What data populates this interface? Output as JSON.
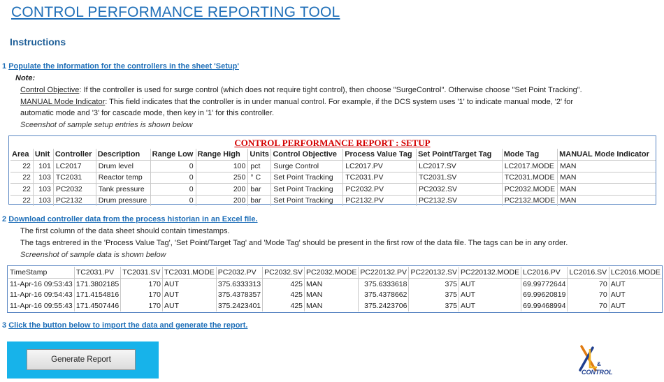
{
  "title": "CONTROL PERFORMANCE REPORTING TOOL",
  "instructions_heading": "Instructions",
  "step1": {
    "num": "1",
    "text": "Populate  the information for the controllers in the sheet 'Setup'",
    "note_label": "Note:",
    "objective_label": "Control Objective",
    "objective_text": ": If the controller is used for surge control (which does not require tight control), then choose \"SurgeControl\". Otherwise choose \"Set Point Tracking\".",
    "manual_label": "MANUAL Mode Indicator",
    "manual_text_1": ": This field indicates that the controller is in under manual control. For example, if the DCS system uses '1' to indicate manual mode, '2' for",
    "manual_text_2": "automatic mode and '3' for cascade mode, then key in '1' for this controller.",
    "screenshot_note": "Sceenshot of sample setup entries is shown below"
  },
  "setup": {
    "title": "CONTROL PERFORMANCE REPORT : SETUP",
    "headers": [
      "Area",
      "Unit",
      "Controller",
      "Description",
      "Range Low",
      "Range High",
      "Units",
      "Control Objective",
      "Process Value Tag",
      "Set Point/Target Tag",
      "Mode Tag",
      "MANUAL Mode Indicator"
    ],
    "rows": [
      [
        "22",
        "101",
        "LC2017",
        "Drum level",
        "0",
        "100",
        "pct",
        "Surge Control",
        "LC2017.PV",
        "LC2017.SV",
        "LC2017.MODE",
        "MAN"
      ],
      [
        "22",
        "103",
        "TC2031",
        "Reactor temp",
        "0",
        "250",
        "° C",
        "Set Point Tracking",
        "TC2031.PV",
        "TC2031.SV",
        "TC2031.MODE",
        "MAN"
      ],
      [
        "22",
        "103",
        "PC2032",
        "Tank pressure",
        "0",
        "200",
        "bar",
        "Set Point Tracking",
        "PC2032.PV",
        "PC2032.SV",
        "PC2032.MODE",
        "MAN"
      ],
      [
        "22",
        "103",
        "PC2132",
        "Drum pressure",
        "0",
        "200",
        "bar",
        "Set Point Tracking",
        "PC2132.PV",
        "PC2132.SV",
        "PC2132.MODE",
        "MAN"
      ]
    ]
  },
  "step2": {
    "num": "2",
    "text": "Download controller data from the process historian in an Excel file.",
    "line1": "The first column of the data sheet should contain timestamps.",
    "line2": "The tags entrered in the 'Process Value Tag',  'Set Point/Target Tag' and 'Mode Tag' should be present in the first row of the data file. The tags can be in any order.",
    "screenshot_note": "Screenshot of sample data is shown below"
  },
  "data": {
    "headers": [
      "TimeStamp",
      "TC2031.PV",
      "TC2031.SV",
      "TC2031.MODE",
      "PC2032.PV",
      "PC2032.SV",
      "PC2032.MODE",
      "PC220132.PV",
      "PC220132.SV",
      "PC220132.MODE",
      "LC2016.PV",
      "LC2016.SV",
      "LC2016.MODE"
    ],
    "rows": [
      [
        "11-Apr-16 09:53:43",
        "171.3802185",
        "170",
        "AUT",
        "375.6333313",
        "425",
        "MAN",
        "375.6333618",
        "375",
        "AUT",
        "69.99772644",
        "70",
        "AUT"
      ],
      [
        "11-Apr-16 09:54:43",
        "171.4154816",
        "170",
        "AUT",
        "375.4378357",
        "425",
        "MAN",
        "375.4378662",
        "375",
        "AUT",
        "69.99620819",
        "70",
        "AUT"
      ],
      [
        "11-Apr-16 09:55:43",
        "171.4507446",
        "170",
        "AUT",
        "375.2423401",
        "425",
        "MAN",
        "375.2423706",
        "375",
        "AUT",
        "69.99468994",
        "70",
        "AUT"
      ]
    ]
  },
  "step3": {
    "num": "3",
    "text": "Click the button below to import the data and generate the report."
  },
  "button_label": "Generate Report",
  "logo": {
    "text": "CONTROL"
  },
  "colors": {
    "accent": "#1f6fb8",
    "setup_title": "#d40000",
    "button_panel": "#17b3ea"
  }
}
